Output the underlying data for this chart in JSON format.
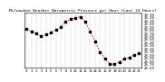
{
  "title": "Milwaukee Weather Barometric Pressure per Hour (Last 24 Hours)",
  "hours": [
    0,
    1,
    2,
    3,
    4,
    5,
    6,
    7,
    8,
    9,
    10,
    11,
    12,
    13,
    14,
    15,
    16,
    17,
    18,
    19,
    20,
    21,
    22,
    23
  ],
  "pressure": [
    29.82,
    29.75,
    29.68,
    29.6,
    29.65,
    29.72,
    29.8,
    29.9,
    30.05,
    30.15,
    30.18,
    30.22,
    30.05,
    29.75,
    29.42,
    29.1,
    28.88,
    28.72,
    28.7,
    28.78,
    28.88,
    28.92,
    29.0,
    29.05
  ],
  "line_color": "#ff0000",
  "marker_color": "#000000",
  "background_color": "#ffffff",
  "grid_color": "#888888",
  "ylim_min": 28.6,
  "ylim_max": 30.35,
  "ytick_step": 0.1,
  "title_fontsize": 3.2,
  "tick_fontsize": 2.8,
  "line_width": 0.55,
  "marker_size": 1.2
}
